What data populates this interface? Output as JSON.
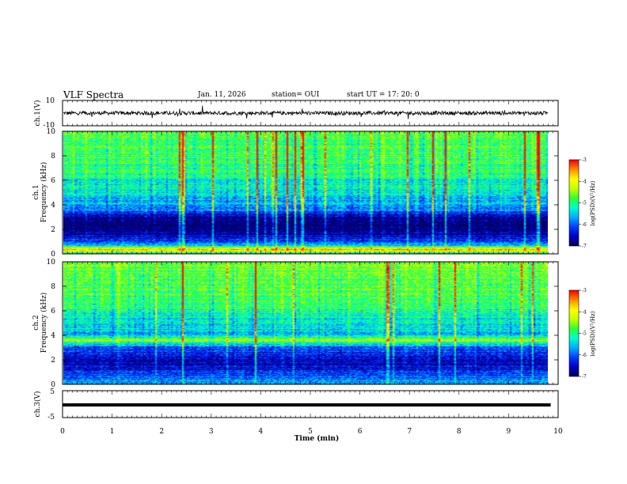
{
  "header": {
    "title": "VLF Spectra",
    "date": "Jan. 11, 2026",
    "station": "station= OUI",
    "start": "start UT =  17: 20: 0"
  },
  "colors": {
    "colormap": [
      "#000060",
      "#0000c8",
      "#0040ff",
      "#00b0ff",
      "#00ffd0",
      "#30ff30",
      "#c8ff00",
      "#ffff00",
      "#ff9000",
      "#ff0000"
    ],
    "trace": "#000000"
  },
  "chart_data": [
    {
      "id": "ch1-waveform",
      "type": "line",
      "ylabel": "ch.1(V)",
      "ylim": [
        -10,
        10
      ],
      "yticks": [
        "10",
        "-10"
      ],
      "xlim": [
        0,
        10
      ],
      "baseline": 0,
      "noise_amplitude": 1.5
    },
    {
      "id": "ch1-spectrogram",
      "type": "heatmap",
      "ylabel": "Frequency (kHz)",
      "channel": "ch.1",
      "ylim": [
        0,
        10
      ],
      "yticks": [
        "0",
        "2",
        "4",
        "6",
        "8",
        "10"
      ],
      "xlim": [
        0,
        9.85
      ],
      "colorbar": {
        "label": "log(PSD)(V²/Hz)",
        "range": [
          -7,
          -3
        ],
        "ticks": [
          "-3",
          "-4",
          "-5",
          "-6",
          "-7"
        ]
      },
      "profile": [
        {
          "f": 0,
          "level": -5.4
        },
        {
          "f": 0.4,
          "level": -3.6
        },
        {
          "f": 0.7,
          "level": -5.8
        },
        {
          "f": 1.4,
          "level": -6.6
        },
        {
          "f": 2.5,
          "level": -6.9
        },
        {
          "f": 3.2,
          "level": -6.6
        },
        {
          "f": 3.6,
          "level": -5.8
        },
        {
          "f": 4.2,
          "level": -5.6
        },
        {
          "f": 5.5,
          "level": -5.3
        },
        {
          "f": 7.0,
          "level": -4.9
        },
        {
          "f": 10,
          "level": -4.7
        }
      ]
    },
    {
      "id": "ch2-spectrogram",
      "type": "heatmap",
      "ylabel": "Frequency (kHz)",
      "channel": "ch.2",
      "ylim": [
        0,
        10
      ],
      "yticks": [
        "0",
        "2",
        "4",
        "6",
        "8",
        "10"
      ],
      "xlim": [
        0,
        9.85
      ],
      "colorbar": {
        "label": "log(PSD)(V²/Hz)",
        "range": [
          -7,
          -3
        ],
        "ticks": [
          "-3",
          "-4",
          "-5",
          "-6",
          "-7"
        ]
      },
      "profile": [
        {
          "f": 0,
          "level": -5.6
        },
        {
          "f": 0.5,
          "level": -5.9
        },
        {
          "f": 1.2,
          "level": -6.5
        },
        {
          "f": 2.2,
          "level": -6.6
        },
        {
          "f": 3.0,
          "level": -6.0
        },
        {
          "f": 3.6,
          "level": -4.4
        },
        {
          "f": 4.0,
          "level": -5.5
        },
        {
          "f": 5.5,
          "level": -5.2
        },
        {
          "f": 7.0,
          "level": -4.8
        },
        {
          "f": 10,
          "level": -4.6
        }
      ]
    },
    {
      "id": "ch3-waveform",
      "type": "line",
      "ylabel": "ch.3(V)",
      "ylim": [
        -5,
        5
      ],
      "yticks": [
        "5",
        "-5"
      ],
      "xlim": [
        0,
        9.85
      ],
      "baseline": 0,
      "noise_amplitude": 0
    }
  ],
  "xaxis": {
    "label": "Time (min)",
    "range": [
      0,
      10
    ],
    "ticks": [
      "0",
      "1",
      "2",
      "3",
      "4",
      "5",
      "6",
      "7",
      "8",
      "9",
      "10"
    ]
  }
}
